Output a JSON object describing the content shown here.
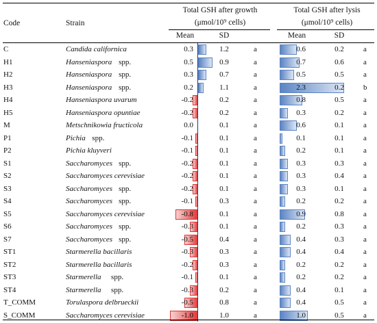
{
  "table": {
    "headers": {
      "code": "Code",
      "strain": "Strain",
      "growth_title": "Total GSH after growth",
      "growth_unit": "(μmol/10⁹ cells)",
      "lysis_title": "Total GSH after lysis",
      "lysis_unit": "(μmol/10⁹ cells)",
      "mean": "Mean",
      "sd": "SD"
    },
    "rows": [
      {
        "code": "C",
        "genus": "Candida californica",
        "suffix": "",
        "g_mean": "0.3",
        "g_sd": "1.2",
        "g_grp": "a",
        "l_mean": "0.6",
        "l_sd": "0.2",
        "l_grp": "a"
      },
      {
        "code": "H1",
        "genus": "Hanseniaspora",
        "suffix": "spp.",
        "g_mean": "0.5",
        "g_sd": "0.9",
        "g_grp": "a",
        "l_mean": "0.7",
        "l_sd": "0.6",
        "l_grp": "a"
      },
      {
        "code": "H2",
        "genus": "Hanseniaspora",
        "suffix": "spp.",
        "g_mean": "0.3",
        "g_sd": "0.7",
        "g_grp": "a",
        "l_mean": "0.5",
        "l_sd": "0.5",
        "l_grp": "a"
      },
      {
        "code": "H3",
        "genus": "Hanseniaspora",
        "suffix": "spp.",
        "g_mean": "0.2",
        "g_sd": "1.1",
        "g_grp": "a",
        "l_mean": "2.3",
        "l_sd": "0.2",
        "l_grp": "b"
      },
      {
        "code": "H4",
        "genus": "Hanseniaspora uvarum",
        "suffix": "",
        "g_mean": "-0.2",
        "g_sd": "0.2",
        "g_grp": "a",
        "l_mean": "0.8",
        "l_sd": "0.5",
        "l_grp": "a"
      },
      {
        "code": "H5",
        "genus": "Hanseniaspora opuntiae",
        "suffix": "",
        "g_mean": "-0.2",
        "g_sd": "0.2",
        "g_grp": "a",
        "l_mean": "0.3",
        "l_sd": "0.2",
        "l_grp": "a"
      },
      {
        "code": "M",
        "genus": "Metschnikowia fructicola",
        "suffix": "",
        "g_mean": "0.0",
        "g_sd": "0.1",
        "g_grp": "a",
        "l_mean": "0.6",
        "l_sd": "0.1",
        "l_grp": "a"
      },
      {
        "code": "P1",
        "genus": "Pichia",
        "suffix": "spp.",
        "g_mean": "-0.1",
        "g_sd": "0.1",
        "g_grp": "a",
        "l_mean": "0.1",
        "l_sd": "0.1",
        "l_grp": "a"
      },
      {
        "code": "P2",
        "genus": "Pichia kluyveri",
        "suffix": "",
        "g_mean": "-0.1",
        "g_sd": "0.1",
        "g_grp": "a",
        "l_mean": "0.2",
        "l_sd": "0.1",
        "l_grp": "a"
      },
      {
        "code": "S1",
        "genus": "Saccharomyces",
        "suffix": "spp.",
        "g_mean": "-0.2",
        "g_sd": "0.1",
        "g_grp": "a",
        "l_mean": "0.3",
        "l_sd": "0.3",
        "l_grp": "a"
      },
      {
        "code": "S2",
        "genus": "Saccharomyces cerevisiae",
        "suffix": "",
        "g_mean": "-0.2",
        "g_sd": "0.1",
        "g_grp": "a",
        "l_mean": "0.3",
        "l_sd": "0.4",
        "l_grp": "a"
      },
      {
        "code": "S3",
        "genus": "Saccharomyces",
        "suffix": "spp.",
        "g_mean": "-0.2",
        "g_sd": "0.1",
        "g_grp": "a",
        "l_mean": "0.3",
        "l_sd": "0.1",
        "l_grp": "a"
      },
      {
        "code": "S4",
        "genus": "Saccharomyces",
        "suffix": "spp.",
        "g_mean": "-0.1",
        "g_sd": "0.3",
        "g_grp": "a",
        "l_mean": "0.2",
        "l_sd": "0.2",
        "l_grp": "a"
      },
      {
        "code": "S5",
        "genus": "Saccharomyces cerevisiae",
        "suffix": "",
        "g_mean": "-0.8",
        "g_sd": "0.1",
        "g_grp": "a",
        "l_mean": "0.9",
        "l_sd": "0.8",
        "l_grp": "a"
      },
      {
        "code": "S6",
        "genus": "Saccharomyces",
        "suffix": "spp.",
        "g_mean": "-0.3",
        "g_sd": "0.1",
        "g_grp": "a",
        "l_mean": "0.2",
        "l_sd": "0.3",
        "l_grp": "a"
      },
      {
        "code": "S7",
        "genus": "Saccharomyces",
        "suffix": "spp.",
        "g_mean": "-0.5",
        "g_sd": "0.4",
        "g_grp": "a",
        "l_mean": "0.4",
        "l_sd": "0.3",
        "l_grp": "a"
      },
      {
        "code": "ST1",
        "genus": "Starmerella bacillaris",
        "suffix": "",
        "g_mean": "-0.3",
        "g_sd": "0.3",
        "g_grp": "a",
        "l_mean": "0.4",
        "l_sd": "0.4",
        "l_grp": "a"
      },
      {
        "code": "ST2",
        "genus": "Starmerella bacillaris",
        "suffix": "",
        "g_mean": "-0.2",
        "g_sd": "0.3",
        "g_grp": "a",
        "l_mean": "0.2",
        "l_sd": "0.2",
        "l_grp": "a"
      },
      {
        "code": "ST3",
        "genus": "Starmerella",
        "suffix": "spp.",
        "g_mean": "-0.1",
        "g_sd": "0.1",
        "g_grp": "a",
        "l_mean": "0.2",
        "l_sd": "0.2",
        "l_grp": "a"
      },
      {
        "code": "ST4",
        "genus": "Starmerella",
        "suffix": "spp.",
        "g_mean": "-0.3",
        "g_sd": "0.2",
        "g_grp": "a",
        "l_mean": "0.4",
        "l_sd": "0.1",
        "l_grp": "a"
      },
      {
        "code": "T_COMM",
        "genus": "Torulaspora delbrueckii",
        "suffix": "",
        "g_mean": "-0.5",
        "g_sd": "0.8",
        "g_grp": "a",
        "l_mean": "0.4",
        "l_sd": "0.5",
        "l_grp": "a"
      },
      {
        "code": "S_COMM",
        "genus": "Saccharomyces cerevisiae",
        "suffix": "",
        "g_mean": "-1.0",
        "g_sd": "1.0",
        "g_grp": "a",
        "l_mean": "1.0",
        "l_sd": "0.5",
        "l_grp": "a"
      }
    ]
  },
  "colors": {
    "positive_bar": "#5b84c4",
    "negative_bar": "#e03a3a",
    "axis": "#1f3a73"
  }
}
